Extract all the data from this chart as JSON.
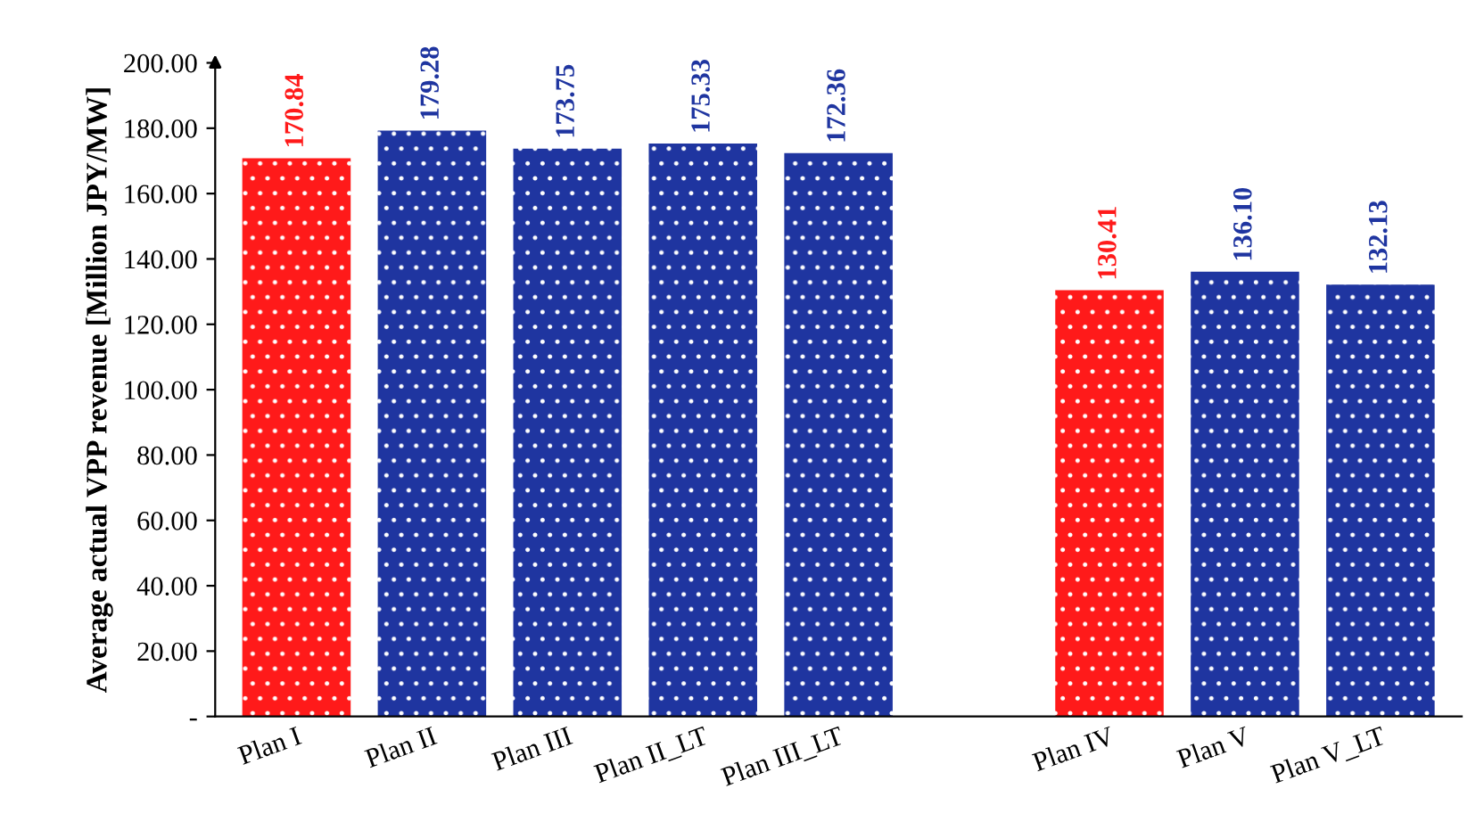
{
  "chart_data": {
    "type": "bar",
    "ylabel": "Average actual VPP revenue [Million JPY/MW]",
    "categories": [
      "Plan I",
      "Plan II",
      "Plan III",
      "Plan II_LT",
      "Plan III_LT",
      null,
      "Plan IV",
      "Plan V",
      "Plan V_LT"
    ],
    "values": [
      170.84,
      179.28,
      173.75,
      175.33,
      172.36,
      null,
      130.41,
      136.1,
      132.13
    ],
    "colors": [
      "#ff1a1a",
      "#1f35a0",
      "#1f35a0",
      "#1f35a0",
      "#1f35a0",
      "#1f35a0",
      "#ff1a1a",
      "#1f35a0",
      "#1f35a0"
    ],
    "value_labels": [
      "170.84",
      "179.28",
      "173.75",
      "175.33",
      "172.36",
      null,
      "130.41",
      "136.10",
      "132.13"
    ],
    "ylim": [
      0,
      200
    ],
    "yticks": [
      {
        "value": 0,
        "label": "-"
      },
      {
        "value": 20,
        "label": "20.00"
      },
      {
        "value": 40,
        "label": "40.00"
      },
      {
        "value": 60,
        "label": "60.00"
      },
      {
        "value": 80,
        "label": "80.00"
      },
      {
        "value": 100,
        "label": "100.00"
      },
      {
        "value": 120,
        "label": "120.00"
      },
      {
        "value": 140,
        "label": "140.00"
      },
      {
        "value": 160,
        "label": "160.00"
      },
      {
        "value": 180,
        "label": "180.00"
      },
      {
        "value": 200,
        "label": "200.00"
      }
    ],
    "grid": false,
    "legend": false
  }
}
